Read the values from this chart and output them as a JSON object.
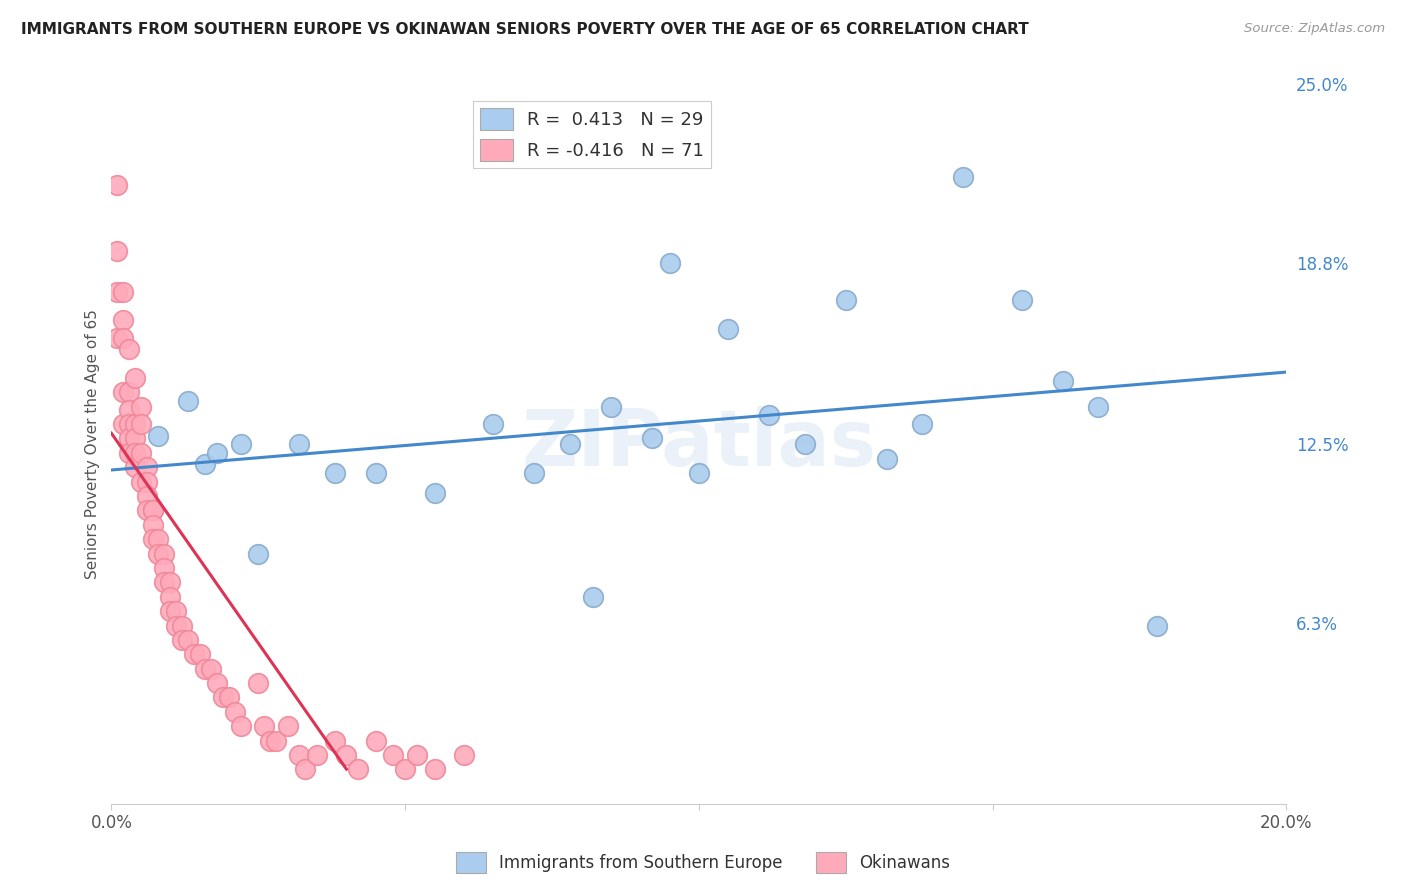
{
  "title": "IMMIGRANTS FROM SOUTHERN EUROPE VS OKINAWAN SENIORS POVERTY OVER THE AGE OF 65 CORRELATION CHART",
  "source": "Source: ZipAtlas.com",
  "ylabel": "Seniors Poverty Over the Age of 65",
  "xlim": [
    0.0,
    0.2
  ],
  "ylim": [
    0.0,
    0.25
  ],
  "yticks_right": [
    0.0,
    0.063,
    0.125,
    0.188,
    0.25
  ],
  "ytick_right_labels": [
    "",
    "6.3%",
    "12.5%",
    "18.8%",
    "25.0%"
  ],
  "xticks": [
    0.0,
    0.05,
    0.1,
    0.15,
    0.2
  ],
  "xtick_labels": [
    "0.0%",
    "",
    "",
    "",
    "20.0%"
  ],
  "background_color": "#ffffff",
  "grid_color": "#d8d8d8",
  "blue_color": "#aaccee",
  "blue_edge": "#88aacc",
  "pink_color": "#ffaabb",
  "pink_edge": "#ee8899",
  "blue_line_color": "#4488cc",
  "pink_line_color": "#dd3355",
  "legend_blue_label_r": "R = ",
  "legend_blue_r_val": " 0.413",
  "legend_blue_n": "  N = ",
  "legend_blue_n_val": "29",
  "legend_pink_label_r": "R = ",
  "legend_pink_r_val": "-0.416",
  "legend_pink_n": "  N = ",
  "legend_pink_n_val": "71",
  "watermark": "ZIPatlas",
  "blue_scatter_x": [
    0.008,
    0.013,
    0.016,
    0.018,
    0.022,
    0.025,
    0.032,
    0.038,
    0.045,
    0.055,
    0.065,
    0.072,
    0.078,
    0.082,
    0.085,
    0.092,
    0.095,
    0.1,
    0.105,
    0.112,
    0.118,
    0.125,
    0.132,
    0.138,
    0.145,
    0.155,
    0.162,
    0.168,
    0.178
  ],
  "blue_scatter_y": [
    0.128,
    0.14,
    0.118,
    0.122,
    0.125,
    0.087,
    0.125,
    0.115,
    0.115,
    0.108,
    0.132,
    0.115,
    0.125,
    0.072,
    0.138,
    0.127,
    0.188,
    0.115,
    0.165,
    0.135,
    0.125,
    0.175,
    0.12,
    0.132,
    0.218,
    0.175,
    0.147,
    0.138,
    0.062
  ],
  "pink_scatter_x": [
    0.001,
    0.001,
    0.001,
    0.001,
    0.002,
    0.002,
    0.002,
    0.002,
    0.002,
    0.003,
    0.003,
    0.003,
    0.003,
    0.003,
    0.003,
    0.004,
    0.004,
    0.004,
    0.004,
    0.004,
    0.005,
    0.005,
    0.005,
    0.005,
    0.006,
    0.006,
    0.006,
    0.006,
    0.007,
    0.007,
    0.007,
    0.007,
    0.008,
    0.008,
    0.009,
    0.009,
    0.009,
    0.01,
    0.01,
    0.01,
    0.011,
    0.011,
    0.012,
    0.012,
    0.013,
    0.014,
    0.015,
    0.016,
    0.017,
    0.018,
    0.019,
    0.02,
    0.021,
    0.022,
    0.025,
    0.026,
    0.027,
    0.028,
    0.03,
    0.032,
    0.033,
    0.035,
    0.038,
    0.04,
    0.042,
    0.045,
    0.048,
    0.05,
    0.052,
    0.055,
    0.06
  ],
  "pink_scatter_y": [
    0.215,
    0.192,
    0.178,
    0.162,
    0.178,
    0.168,
    0.162,
    0.143,
    0.132,
    0.158,
    0.143,
    0.137,
    0.132,
    0.127,
    0.122,
    0.148,
    0.132,
    0.127,
    0.122,
    0.117,
    0.138,
    0.132,
    0.122,
    0.112,
    0.117,
    0.112,
    0.107,
    0.102,
    0.102,
    0.102,
    0.097,
    0.092,
    0.092,
    0.087,
    0.087,
    0.082,
    0.077,
    0.077,
    0.072,
    0.067,
    0.067,
    0.062,
    0.062,
    0.057,
    0.057,
    0.052,
    0.052,
    0.047,
    0.047,
    0.042,
    0.037,
    0.037,
    0.032,
    0.027,
    0.042,
    0.027,
    0.022,
    0.022,
    0.027,
    0.017,
    0.012,
    0.017,
    0.022,
    0.017,
    0.012,
    0.022,
    0.017,
    0.012,
    0.017,
    0.012,
    0.017
  ],
  "blue_line_x0": 0.0,
  "blue_line_x1": 0.2,
  "pink_line_x0": 0.0,
  "pink_line_x1": 0.04
}
